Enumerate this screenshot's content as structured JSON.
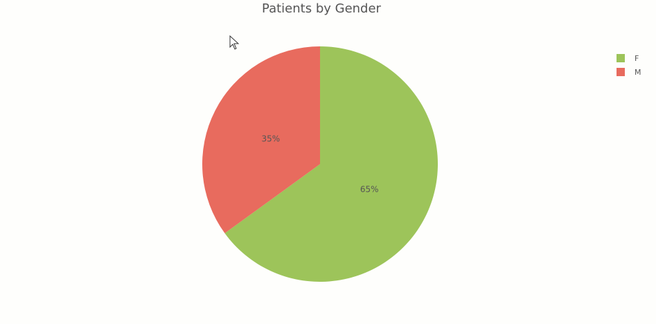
{
  "chart_data": {
    "type": "pie",
    "title": "Patients by Gender",
    "categories": [
      "F",
      "M"
    ],
    "values": [
      65,
      35
    ],
    "labels": [
      "65%",
      "35%"
    ],
    "colors": [
      "#9dc45a",
      "#e86b5e"
    ],
    "legend": {
      "placement": "top-right",
      "entries": [
        "F",
        "M"
      ]
    }
  },
  "icons": {
    "cursor": "mouse-pointer-icon"
  }
}
